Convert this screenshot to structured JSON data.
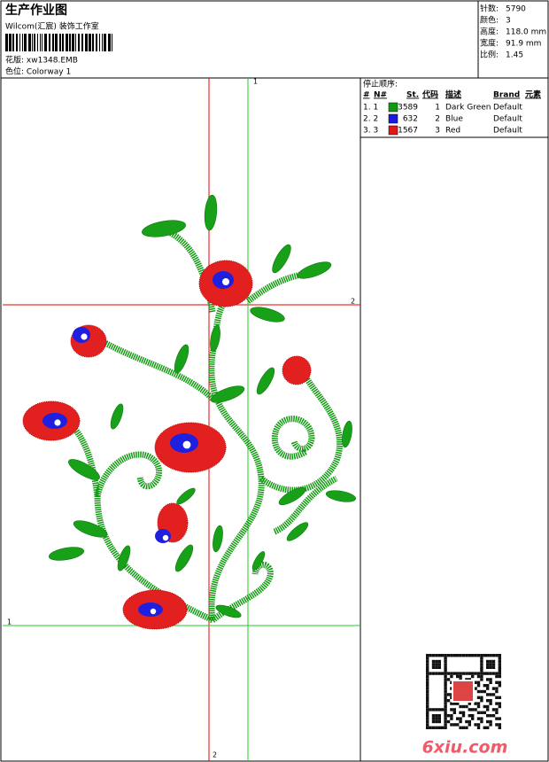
{
  "header": {
    "title": "生产作业图",
    "subtitle": "Wilcom(汇宸) 装饰工作室",
    "design_file": "花版: xw1348.EMB",
    "colorway": "色位: Colorway 1"
  },
  "stats": [
    {
      "label": "针数:",
      "value": "5790"
    },
    {
      "label": "颜色:",
      "value": "3"
    },
    {
      "label": "高度:",
      "value": "118.0 mm"
    },
    {
      "label": "宽度:",
      "value": "91.9 mm"
    },
    {
      "label": "比例:",
      "value": "1.45"
    }
  ],
  "design": {
    "markers": [
      "1",
      "2",
      "1",
      "2"
    ]
  },
  "stop_sequence": {
    "title": "停止顺序:",
    "columns": [
      "#",
      "N#",
      "St.",
      "代码",
      "描述",
      "Brand",
      "元素"
    ],
    "rows": [
      {
        "index": "1. 1",
        "color": "#129a12",
        "stitches": "3589",
        "code": "1",
        "description": "Dark Green",
        "brand": "Default"
      },
      {
        "index": "2. 2",
        "color": "#1a1adc",
        "stitches": "632",
        "code": "2",
        "description": "Blue",
        "brand": "Default"
      },
      {
        "index": "3. 3",
        "color": "#e01818",
        "stitches": "1567",
        "code": "3",
        "description": "Red",
        "brand": "Default"
      }
    ]
  },
  "watermark": "6xiu.com"
}
